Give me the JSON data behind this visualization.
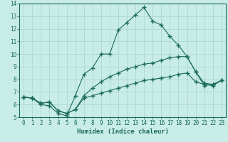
{
  "xlabel": "Humidex (Indice chaleur)",
  "xlim": [
    -0.5,
    23.5
  ],
  "ylim": [
    5,
    14
  ],
  "xticks": [
    0,
    1,
    2,
    3,
    4,
    5,
    6,
    7,
    8,
    9,
    10,
    11,
    12,
    13,
    14,
    15,
    16,
    17,
    18,
    19,
    20,
    21,
    22,
    23
  ],
  "yticks": [
    5,
    6,
    7,
    8,
    9,
    10,
    11,
    12,
    13,
    14
  ],
  "background_color": "#c8ece6",
  "grid_color": "#b0d8d0",
  "line_color": "#1a6b5a",
  "line1_x": [
    0,
    1,
    2,
    3,
    4,
    5,
    6,
    7,
    8,
    9,
    10,
    11,
    12,
    13,
    14,
    15,
    16,
    17,
    18,
    19,
    20,
    21,
    22,
    23
  ],
  "line1_y": [
    6.6,
    6.5,
    6.0,
    5.9,
    5.3,
    5.1,
    6.7,
    8.4,
    8.9,
    10.0,
    10.0,
    11.9,
    12.5,
    13.1,
    13.7,
    12.6,
    12.3,
    11.4,
    10.7,
    9.8,
    8.6,
    7.5,
    7.6,
    7.9
  ],
  "line2_x": [
    0,
    1,
    2,
    3,
    4,
    5,
    6,
    7,
    8,
    9,
    10,
    11,
    12,
    13,
    14,
    15,
    16,
    17,
    18,
    19,
    20,
    21,
    22,
    23
  ],
  "line2_y": [
    6.6,
    6.5,
    6.1,
    6.2,
    5.5,
    5.3,
    5.6,
    6.7,
    7.3,
    7.8,
    8.2,
    8.5,
    8.8,
    9.0,
    9.2,
    9.3,
    9.5,
    9.7,
    9.8,
    9.8,
    8.6,
    7.7,
    7.6,
    7.9
  ],
  "line3_x": [
    0,
    1,
    2,
    3,
    4,
    5,
    6,
    7,
    8,
    9,
    10,
    11,
    12,
    13,
    14,
    15,
    16,
    17,
    18,
    19,
    20,
    21,
    22,
    23
  ],
  "line3_y": [
    6.6,
    6.5,
    6.1,
    6.2,
    5.5,
    5.3,
    5.6,
    6.5,
    6.7,
    6.9,
    7.1,
    7.3,
    7.5,
    7.7,
    7.9,
    8.0,
    8.1,
    8.2,
    8.4,
    8.5,
    7.8,
    7.6,
    7.5,
    7.9
  ],
  "tick_fontsize": 5.5,
  "label_fontsize": 6.5
}
